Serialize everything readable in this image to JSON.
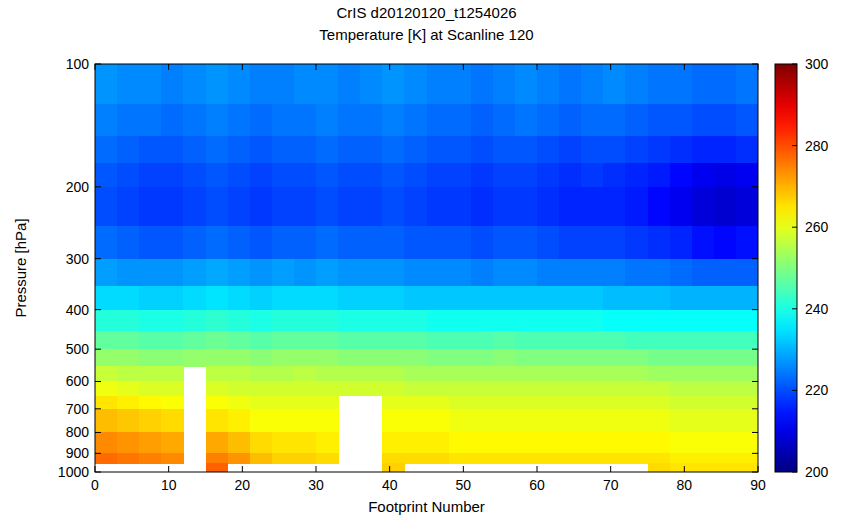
{
  "chart_data": {
    "type": "heatmap",
    "title": "CrIS d20120120_t1254026",
    "subtitle": "Temperature [K] at Scanline 120",
    "x_label": "Footprint Number",
    "y_label": "Pressure [hPa]",
    "log": "y",
    "xlim": [
      0,
      90
    ],
    "xticks": [
      0,
      10,
      20,
      30,
      40,
      50,
      60,
      70,
      80,
      90
    ],
    "ylim": [
      100,
      1000
    ],
    "yticks": [
      100,
      200,
      300,
      400,
      500,
      600,
      700,
      800,
      900,
      1000
    ],
    "x_edges": [
      0,
      3,
      6,
      9,
      12,
      15,
      18,
      21,
      24,
      27,
      30,
      33,
      36,
      39,
      42,
      45,
      48,
      51,
      54,
      57,
      60,
      63,
      66,
      69,
      72,
      75,
      78,
      81,
      84,
      87,
      90
    ],
    "y_edges": [
      100,
      125,
      150,
      175,
      200,
      250,
      300,
      350,
      400,
      450,
      500,
      550,
      600,
      650,
      700,
      800,
      900,
      950,
      1000
    ],
    "values": [
      [
        227,
        226,
        226,
        225,
        226,
        227,
        226,
        225,
        225,
        226,
        226,
        225,
        226,
        227,
        226,
        225,
        225,
        224,
        225,
        226,
        225,
        224,
        225,
        226,
        225,
        224,
        224,
        223,
        223,
        224
      ],
      [
        225,
        224,
        224,
        223,
        224,
        225,
        224,
        223,
        224,
        224,
        225,
        224,
        224,
        225,
        224,
        223,
        223,
        222,
        223,
        224,
        223,
        222,
        223,
        223,
        222,
        221,
        221,
        220,
        220,
        221
      ],
      [
        223,
        222,
        221,
        221,
        222,
        223,
        222,
        221,
        222,
        222,
        223,
        222,
        222,
        223,
        222,
        221,
        221,
        220,
        221,
        221,
        220,
        219,
        220,
        220,
        219,
        218,
        217,
        216,
        216,
        217
      ],
      [
        221,
        220,
        219,
        219,
        220,
        221,
        220,
        219,
        220,
        220,
        221,
        220,
        220,
        221,
        220,
        219,
        219,
        218,
        219,
        219,
        218,
        217,
        218,
        217,
        216,
        215,
        213,
        211,
        210,
        211
      ],
      [
        220,
        219,
        218,
        218,
        219,
        220,
        219,
        218,
        219,
        219,
        220,
        219,
        219,
        220,
        219,
        218,
        218,
        217,
        218,
        218,
        217,
        216,
        216,
        216,
        215,
        213,
        211,
        209,
        208,
        209
      ],
      [
        223,
        222,
        221,
        221,
        222,
        223,
        222,
        221,
        222,
        222,
        223,
        222,
        222,
        222,
        221,
        221,
        221,
        220,
        221,
        221,
        220,
        219,
        219,
        219,
        218,
        217,
        216,
        214,
        213,
        214
      ],
      [
        228,
        227,
        227,
        227,
        228,
        229,
        228,
        227,
        228,
        227,
        228,
        227,
        227,
        227,
        226,
        226,
        226,
        225,
        226,
        226,
        225,
        225,
        225,
        225,
        224,
        224,
        223,
        222,
        222,
        222
      ],
      [
        234,
        234,
        233,
        233,
        234,
        235,
        234,
        233,
        234,
        234,
        234,
        233,
        233,
        233,
        232,
        232,
        232,
        232,
        232,
        232,
        232,
        232,
        232,
        231,
        231,
        231,
        230,
        230,
        230,
        230
      ],
      [
        241,
        241,
        240,
        240,
        241,
        242,
        241,
        240,
        241,
        241,
        241,
        240,
        240,
        240,
        240,
        239,
        239,
        239,
        239,
        239,
        239,
        239,
        239,
        238,
        238,
        238,
        238,
        238,
        238,
        238
      ],
      [
        247,
        247,
        246,
        246,
        247,
        248,
        247,
        246,
        247,
        247,
        247,
        246,
        246,
        246,
        246,
        245,
        245,
        245,
        246,
        245,
        245,
        245,
        245,
        245,
        244,
        244,
        244,
        244,
        244,
        244
      ],
      [
        252,
        252,
        251,
        251,
        252,
        252,
        252,
        251,
        252,
        252,
        252,
        251,
        251,
        251,
        251,
        250,
        250,
        250,
        251,
        250,
        250,
        250,
        250,
        250,
        250,
        249,
        249,
        249,
        249,
        249
      ],
      [
        257,
        256,
        256,
        256,
        null,
        256,
        256,
        255,
        255,
        256,
        255,
        255,
        255,
        255,
        254,
        254,
        254,
        254,
        254,
        254,
        254,
        254,
        254,
        254,
        254,
        253,
        253,
        253,
        253,
        253
      ],
      [
        261,
        260,
        259,
        259,
        null,
        259,
        258,
        258,
        258,
        258,
        258,
        258,
        258,
        258,
        257,
        257,
        257,
        257,
        257,
        257,
        257,
        257,
        257,
        257,
        257,
        257,
        256,
        256,
        256,
        256
      ],
      [
        265,
        264,
        263,
        262,
        null,
        262,
        261,
        260,
        260,
        260,
        260,
        null,
        null,
        260,
        260,
        260,
        259,
        259,
        259,
        259,
        259,
        259,
        259,
        259,
        259,
        259,
        258,
        258,
        258,
        258
      ],
      [
        269,
        268,
        267,
        266,
        null,
        265,
        264,
        262,
        262,
        262,
        262,
        null,
        null,
        262,
        262,
        262,
        261,
        261,
        261,
        261,
        261,
        261,
        261,
        261,
        261,
        261,
        260,
        260,
        260,
        260
      ],
      [
        274,
        273,
        272,
        271,
        null,
        271,
        269,
        266,
        265,
        265,
        264,
        null,
        null,
        264,
        264,
        264,
        263,
        263,
        263,
        263,
        263,
        263,
        263,
        263,
        263,
        263,
        262,
        262,
        262,
        262
      ],
      [
        277,
        276,
        275,
        274,
        null,
        275,
        273,
        269,
        267,
        267,
        266,
        null,
        null,
        266,
        266,
        266,
        265,
        265,
        265,
        265,
        265,
        265,
        265,
        265,
        265,
        265,
        264,
        264,
        264,
        264
      ],
      [
        null,
        null,
        null,
        null,
        null,
        278,
        null,
        null,
        null,
        null,
        null,
        null,
        null,
        267,
        null,
        null,
        null,
        null,
        null,
        null,
        null,
        null,
        null,
        null,
        null,
        266,
        265,
        265,
        265,
        265
      ]
    ],
    "colorbar": {
      "range": [
        200,
        300
      ],
      "ticks": [
        200,
        220,
        240,
        260,
        280,
        300
      ]
    }
  }
}
